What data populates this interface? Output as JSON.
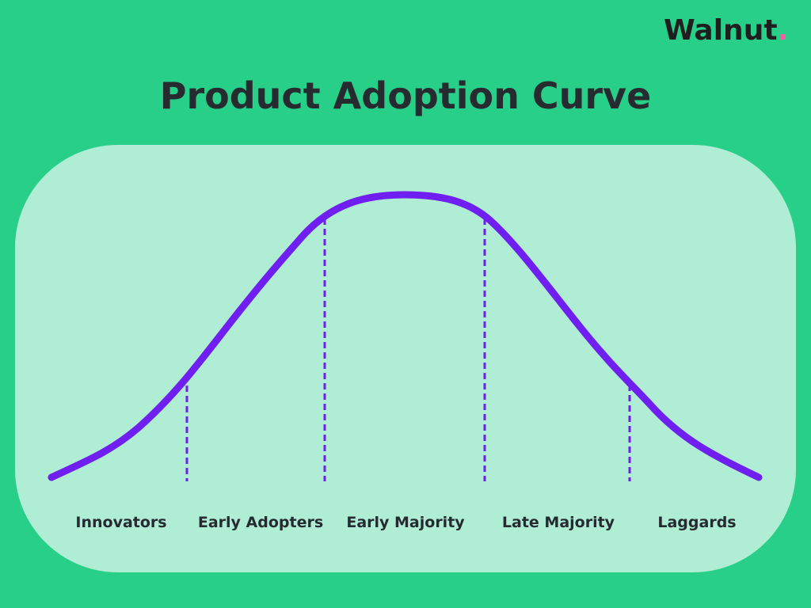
{
  "brand": {
    "name": "Walnut",
    "dot": ".",
    "dot_color": "#ff5aa8"
  },
  "title": "Product Adoption Curve",
  "colors": {
    "background": "#27cf88",
    "panel": "#b0edd5",
    "curve": "#6f1ff0",
    "text": "#262b30"
  },
  "segments": [
    {
      "label": "Innovators"
    },
    {
      "label": "Early Adopters"
    },
    {
      "label": "Early Majority"
    },
    {
      "label": "Late Majority"
    },
    {
      "label": "Laggards"
    }
  ]
}
